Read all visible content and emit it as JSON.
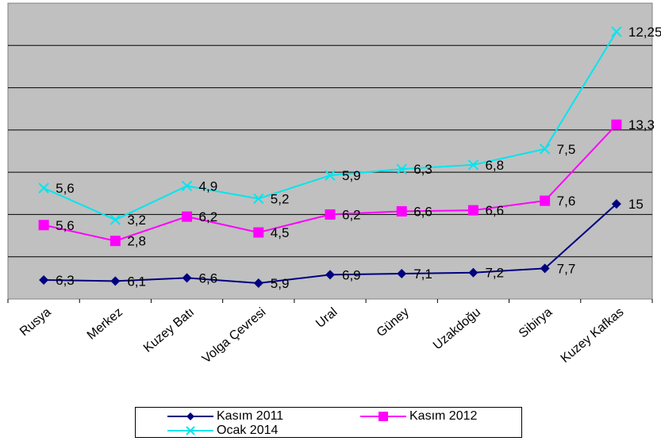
{
  "chart_data": {
    "type": "line",
    "categories": [
      "Rusya",
      "Merkez",
      "Kuzey Batı",
      "Volga Çevresi",
      "Ural",
      "Güney",
      "Uzakdoğu",
      "Sibirya",
      "Kuzey Kafkas"
    ],
    "series": [
      {
        "name": "Kasım 2011",
        "color": "#000080",
        "marker": "diamond",
        "plot_values": [
          1.8,
          1.7,
          2.0,
          1.5,
          2.3,
          2.4,
          2.5,
          2.9,
          9.0
        ],
        "labels": [
          "6,3",
          "6,1",
          "6,6",
          "5,9",
          "6,9",
          "7,1",
          "7,2",
          "7,7",
          "15"
        ]
      },
      {
        "name": "Kasım 2012",
        "color": "#ff00ff",
        "marker": "square",
        "plot_values": [
          7.0,
          5.5,
          7.8,
          6.3,
          8.0,
          8.3,
          8.4,
          9.3,
          16.5
        ],
        "labels": [
          "5,6",
          "2,8",
          "6,2",
          "4,5",
          "6,2",
          "6,6",
          "6,6",
          "7,6",
          "13,3"
        ]
      },
      {
        "name": "Ocak 2014",
        "color": "#00e5ee",
        "marker": "x",
        "plot_values": [
          10.5,
          7.5,
          10.7,
          9.5,
          11.7,
          12.3,
          12.7,
          14.2,
          25.3
        ],
        "labels": [
          "5,6",
          "3,2",
          "4,9",
          "5,2",
          "5,9",
          "6,3",
          "6,8",
          "7,5",
          "12,25"
        ]
      }
    ],
    "ylim": [
      0,
      28
    ],
    "grid": true,
    "legend_position": "bottom"
  }
}
